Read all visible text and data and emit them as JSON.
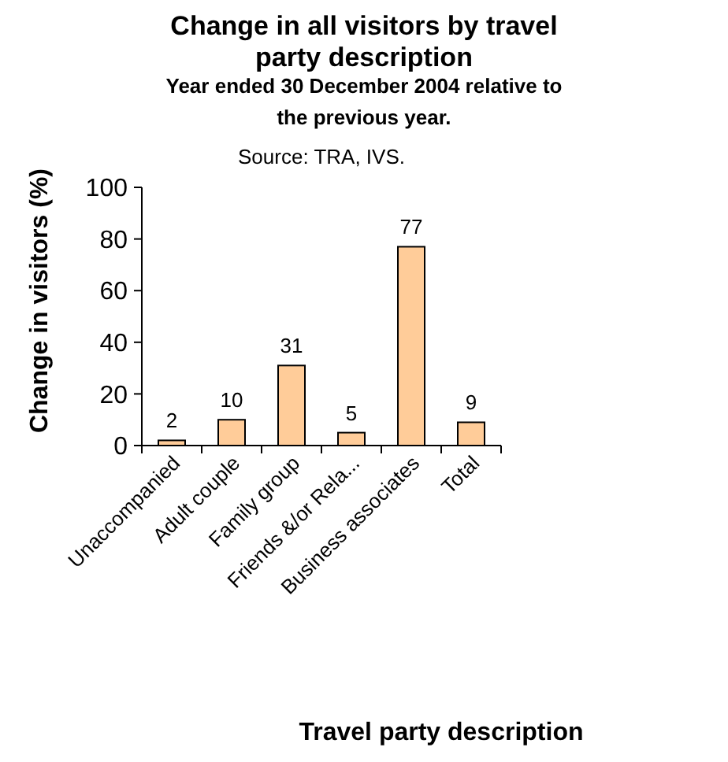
{
  "chart_data": {
    "type": "bar",
    "title": "Change in all visitors by travel party description",
    "subtitle": "Year ended 30 December 2004 relative to the previous year.",
    "annotations": [
      "Source: TRA, IVS."
    ],
    "xlabel": "Travel party description",
    "ylabel": "Change in visitors (%)",
    "categories": [
      "Unaccompanied",
      "Adult couple",
      "Family group",
      "Friends &/or Rela...",
      "Business associates",
      "Total"
    ],
    "values": [
      2,
      10,
      31,
      5,
      77,
      9
    ],
    "color": "#ffcc99",
    "data_labels": true,
    "ylim": [
      0,
      100
    ],
    "yticks": [
      0,
      20,
      40,
      60,
      80,
      100
    ],
    "grid": false
  }
}
